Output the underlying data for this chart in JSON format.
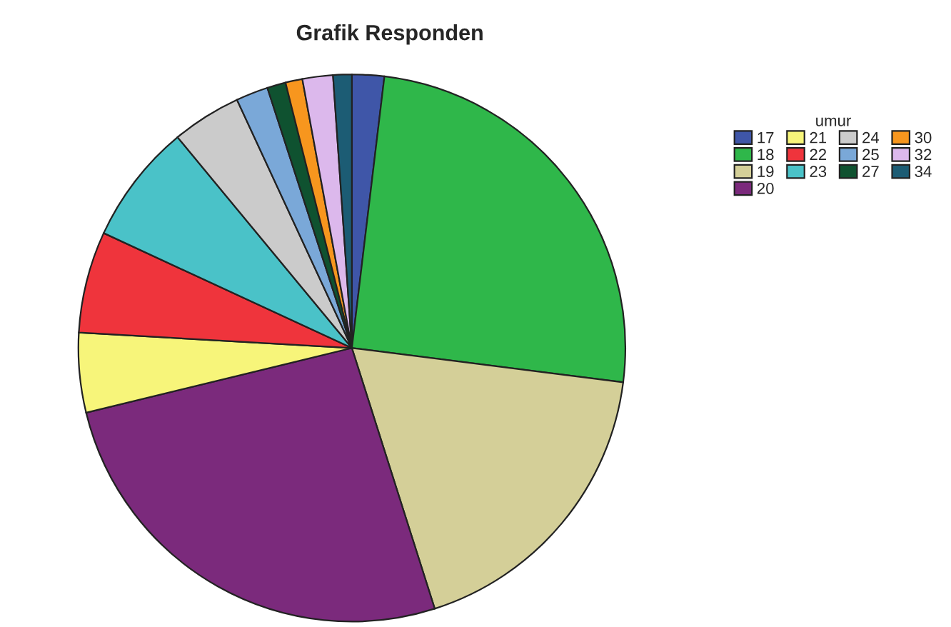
{
  "chart_data": {
    "type": "pie",
    "title": "Grafik Responden",
    "legend_title": "umur",
    "legend": "top right",
    "categories": [
      "17",
      "18",
      "19",
      "20",
      "21",
      "22",
      "23",
      "24",
      "25",
      "27",
      "30",
      "32",
      "34"
    ],
    "values": [
      1.9,
      25.1,
      18.1,
      26.1,
      4.7,
      6.0,
      7.1,
      4.1,
      1.9,
      1.1,
      1.0,
      1.8,
      1.1
    ],
    "colors": [
      "#3f56a8",
      "#2fb74a",
      "#d4cf98",
      "#7b2a7c",
      "#f7f57a",
      "#ef343c",
      "#4ac2c8",
      "#cbcbcb",
      "#7aa8d8",
      "#0f5230",
      "#f7961e",
      "#dcb8ec",
      "#1c5c74"
    ]
  }
}
